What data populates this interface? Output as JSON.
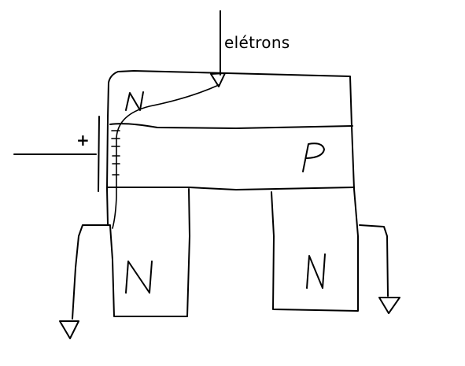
{
  "diagram": {
    "electrons_label": "elétrons",
    "plus_sign": "+",
    "regions": {
      "top_n": "N",
      "middle_p": "P",
      "bottom_left_n": "N",
      "bottom_right_n": "N"
    },
    "stroke_color": "#000000",
    "background_color": "#ffffff"
  }
}
